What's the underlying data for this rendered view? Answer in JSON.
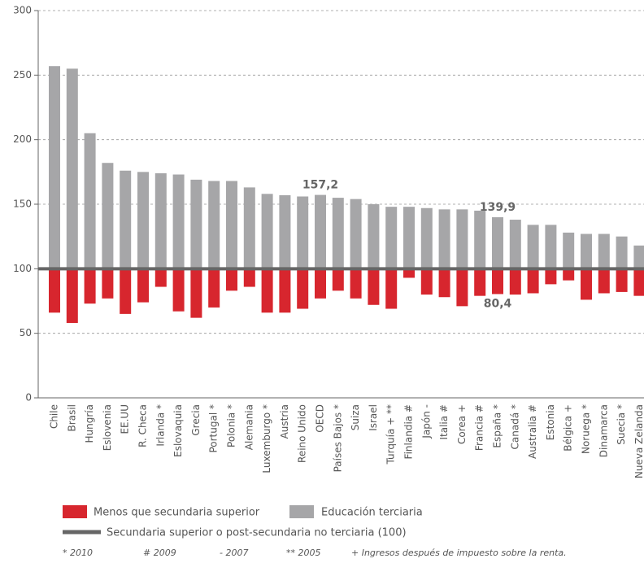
{
  "chart_data": {
    "type": "bar",
    "categories": [
      "Chile",
      "Brasil",
      "Hungría",
      "Eslovenia",
      "EE.UU",
      "R. Checa",
      "Irlanda *",
      "Eslovaquia",
      "Grecia",
      "Portugal *",
      "Polonia *",
      "Alemania",
      "Luxemburgo *",
      "Austria",
      "Reino Unido",
      "OECD",
      "Países Bajos *",
      "Suiza",
      "Israel",
      "Turquía + **",
      "Finlandia #",
      "Japón -",
      "Italia #",
      "Corea +",
      "Francia #",
      "España *",
      "Canadá *",
      "Australia #",
      "Estonia",
      "Bélgica +",
      "Noruega *",
      "Dinamarca",
      "Suecia *",
      "Nueva Zelanda"
    ],
    "series": [
      {
        "name": "Menos que secundaria superior",
        "color": "#d7262e",
        "values": [
          66,
          58,
          73,
          77,
          65,
          74,
          86,
          67,
          62,
          70,
          83,
          86,
          66,
          66,
          69,
          77,
          83,
          77,
          72,
          69,
          93,
          80,
          78,
          71,
          79,
          80.4,
          80,
          81,
          88,
          91,
          76,
          81,
          82,
          79
        ],
        "value_labels": [
          null,
          null,
          null,
          null,
          null,
          null,
          null,
          null,
          null,
          null,
          null,
          null,
          null,
          null,
          null,
          null,
          null,
          null,
          null,
          null,
          null,
          null,
          null,
          null,
          null,
          "80,4",
          null,
          null,
          null,
          null,
          null,
          null,
          null,
          null
        ]
      },
      {
        "name": "Educación terciaria",
        "color": "#a6a6a8",
        "values": [
          257,
          255,
          205,
          182,
          176,
          175,
          174,
          173,
          169,
          168,
          168,
          163,
          158,
          157,
          156,
          157.2,
          155,
          154,
          150,
          148,
          148,
          147,
          146,
          146,
          145,
          139.9,
          138,
          134,
          134,
          128,
          127,
          127,
          125,
          118
        ],
        "value_labels": [
          null,
          null,
          null,
          null,
          null,
          null,
          null,
          null,
          null,
          null,
          null,
          null,
          null,
          null,
          null,
          "157,2",
          null,
          null,
          null,
          null,
          null,
          null,
          null,
          null,
          null,
          "139,9",
          null,
          null,
          null,
          null,
          null,
          null,
          null,
          null
        ]
      }
    ],
    "reference": {
      "name": "Secundaria superior o post-secundaria no terciaria (100)",
      "value": 100,
      "color": "#666666"
    },
    "ylim": [
      0,
      300
    ],
    "yticks": [
      0,
      50,
      100,
      150,
      200,
      250,
      300
    ],
    "grid": true,
    "footnotes": [
      "* 2010",
      "# 2009",
      "- 2007",
      "** 2005",
      "+ Ingresos después de impuesto sobre la renta."
    ]
  }
}
